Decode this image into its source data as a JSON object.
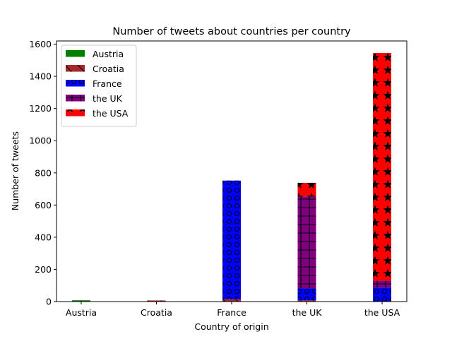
{
  "chart_data": {
    "type": "bar",
    "stacked": true,
    "title": "Number of tweets about countries per country",
    "xlabel": "Country of origin",
    "ylabel": "Number of tweets",
    "categories": [
      "Austria",
      "Croatia",
      "France",
      "the UK",
      "the USA"
    ],
    "ylim": [
      0,
      1620
    ],
    "yticks": [
      "0",
      "200",
      "400",
      "600",
      "800",
      "1000",
      "1200",
      "1400",
      "1600"
    ],
    "grid": false,
    "legend_position": "top-left",
    "series": [
      {
        "name": "Austria",
        "color": "#008000",
        "hatch": "none",
        "values": [
          8,
          0,
          0,
          0,
          0
        ]
      },
      {
        "name": "Croatia",
        "color": "#a52a2a",
        "hatch": "diagonal",
        "values": [
          0,
          7,
          15,
          8,
          0
        ]
      },
      {
        "name": "France",
        "color": "#0000ff",
        "hatch": "circles",
        "values": [
          0,
          0,
          737,
          75,
          87
        ]
      },
      {
        "name": "the UK",
        "color": "#800080",
        "hatch": "plus",
        "values": [
          0,
          0,
          0,
          570,
          43
        ]
      },
      {
        "name": "the USA",
        "color": "#ff0000",
        "hatch": "stars",
        "values": [
          0,
          0,
          0,
          85,
          1415
        ]
      }
    ]
  }
}
